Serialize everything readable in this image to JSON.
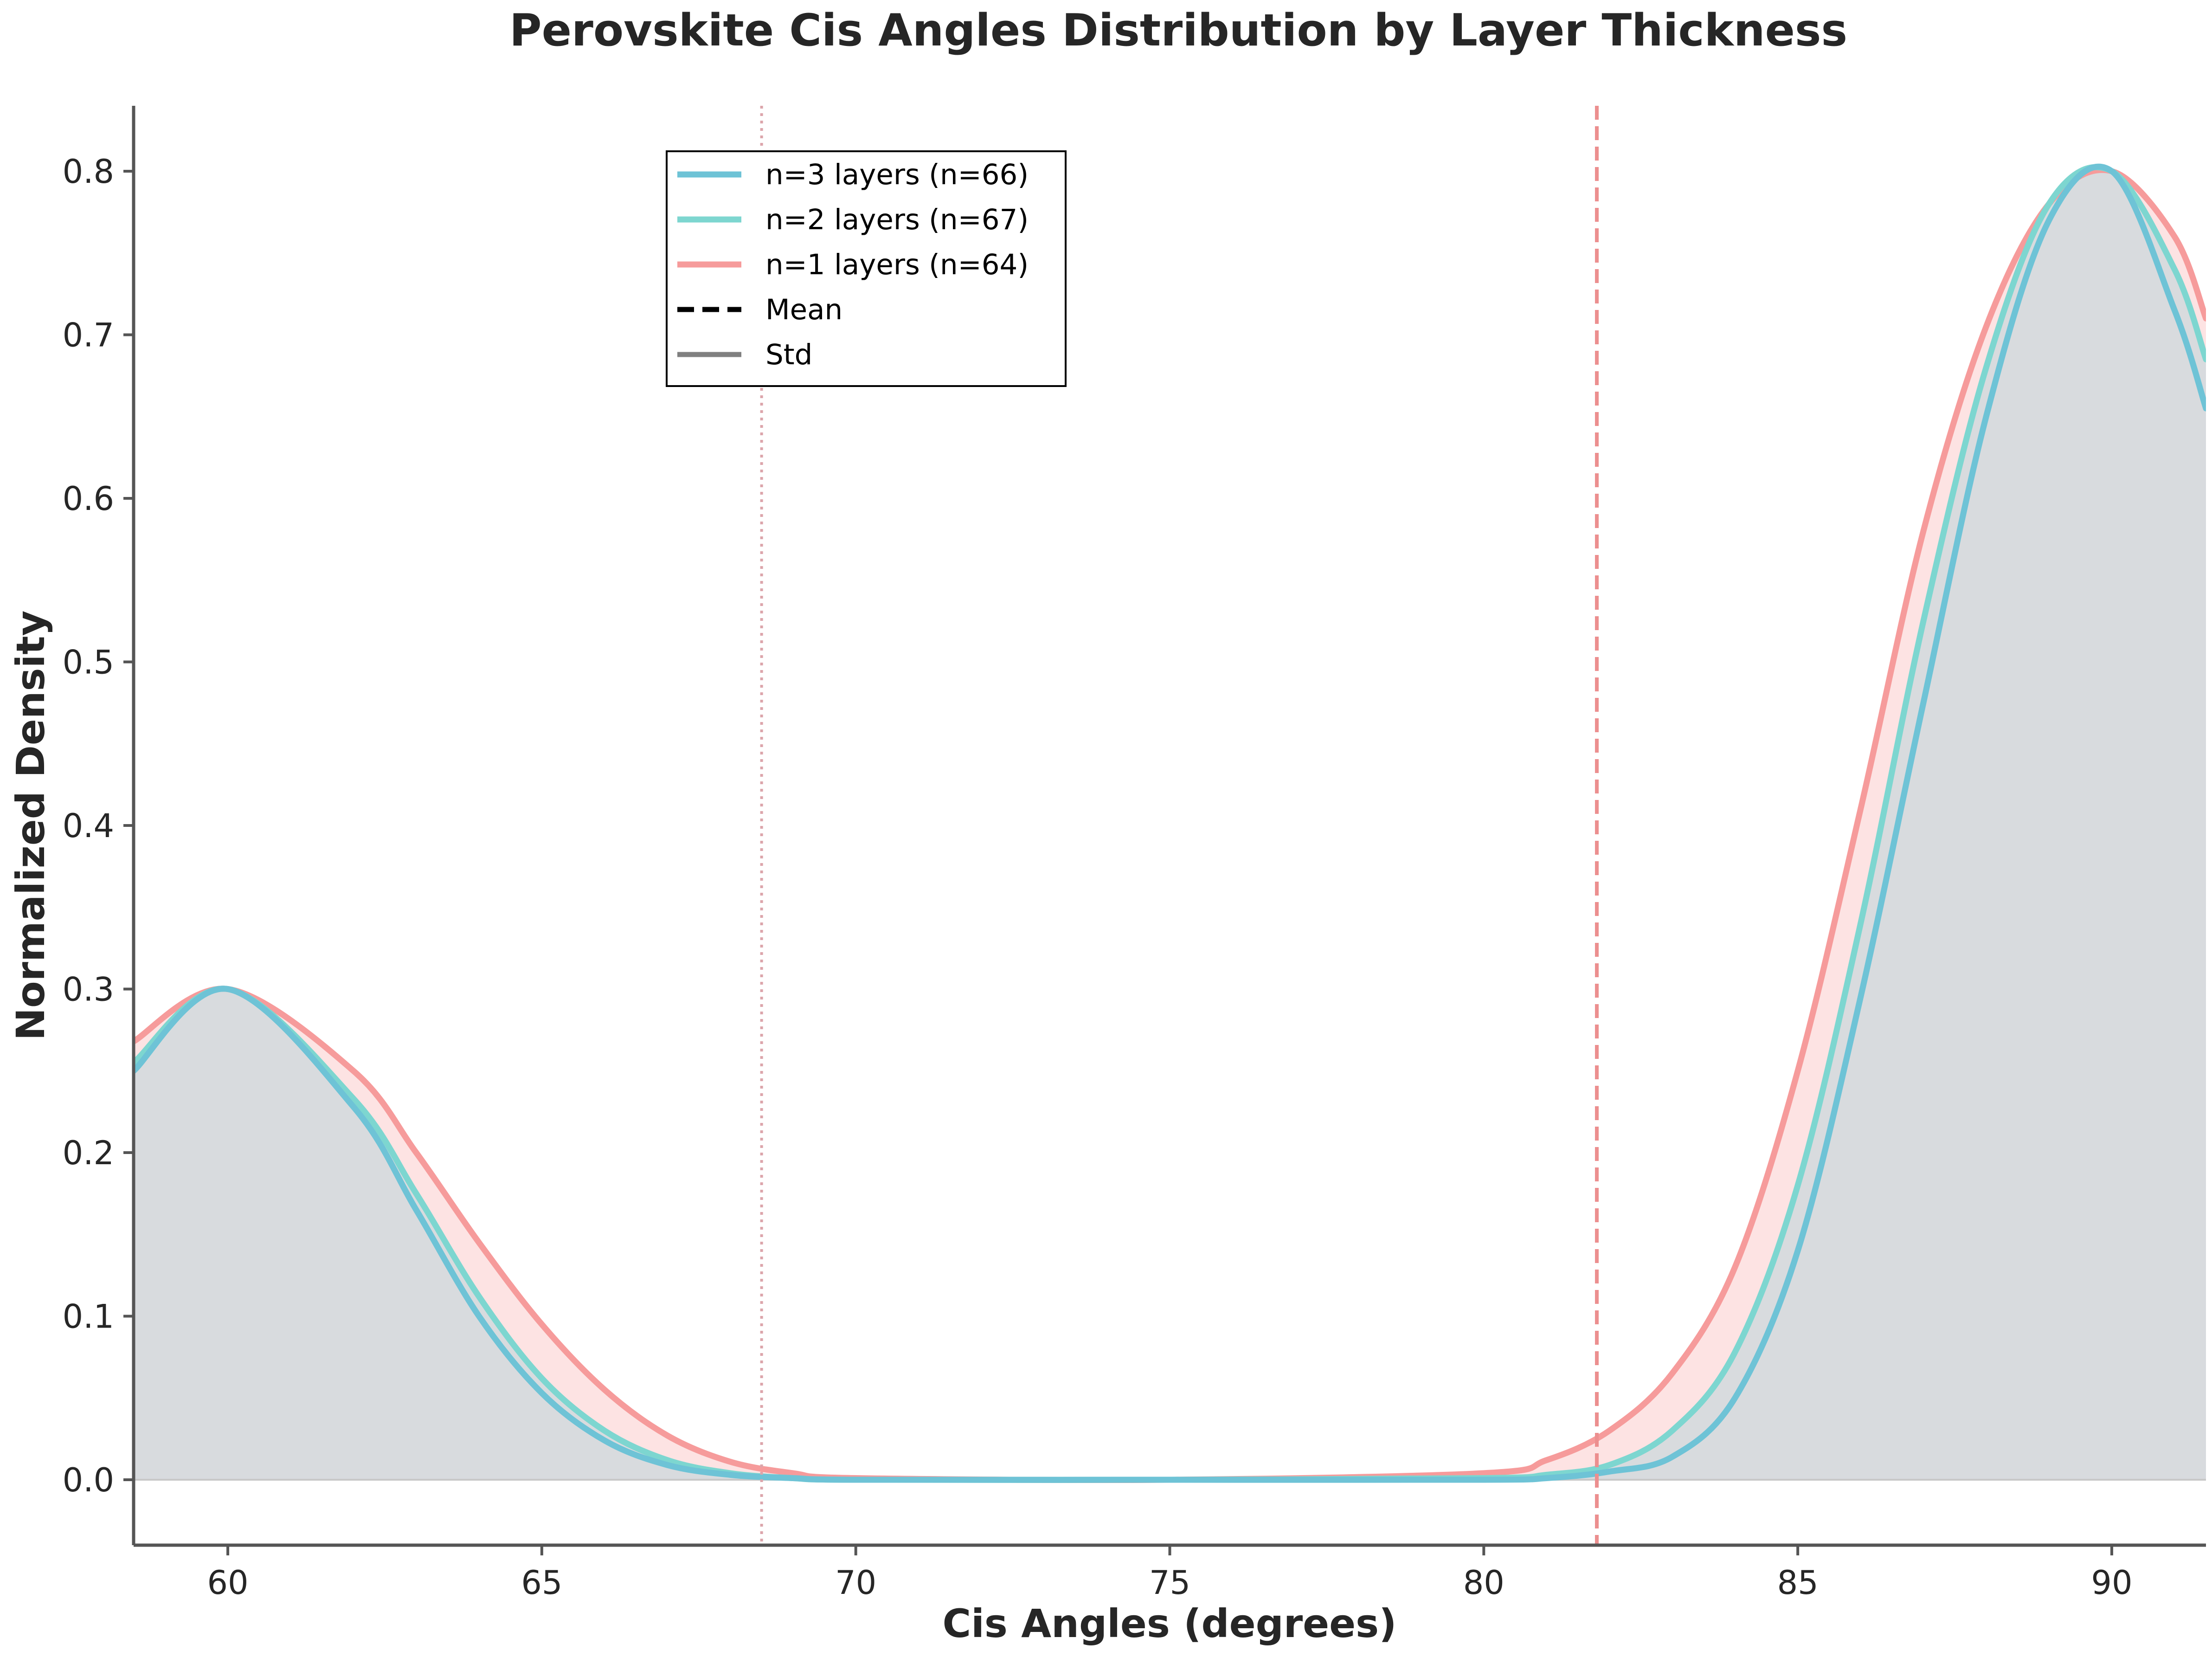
{
  "chart_data": {
    "type": "area",
    "title": "Perovskite Cis Angles Distribution by Layer Thickness",
    "xlabel": "Cis Angles (degrees)",
    "ylabel": "Normalized Density",
    "xlim": [
      58.5,
      91.5
    ],
    "ylim": [
      -0.04,
      0.84
    ],
    "xticks": [
      "60",
      "65",
      "70",
      "75",
      "80",
      "85",
      "90"
    ],
    "yticks": [
      "0.0",
      "0.1",
      "0.2",
      "0.3",
      "0.4",
      "0.5",
      "0.6",
      "0.7",
      "0.8"
    ],
    "grid": false,
    "legend_position": "upper-center-left",
    "legend": [
      {
        "label": "n=3 layers (n=66)",
        "style": "solid",
        "color": "#6ec3d6"
      },
      {
        "label": "n=2 layers (n=67)",
        "style": "solid",
        "color": "#7dd6d0"
      },
      {
        "label": "n=1 layers (n=64)",
        "style": "solid",
        "color": "#f69b9b"
      },
      {
        "label": "Mean",
        "style": "dashed",
        "color": "#000000"
      },
      {
        "label": "Std",
        "style": "solid",
        "color": "#808080"
      }
    ],
    "series": [
      {
        "name": "n=3 layers (n=66)",
        "color": "#6ec3d6",
        "x": [
          58.5,
          60,
          62,
          63,
          64,
          65,
          66,
          67,
          68,
          69,
          70,
          75,
          80,
          81,
          82,
          83,
          84,
          85,
          86,
          87,
          88,
          89,
          90,
          91,
          91.5
        ],
        "y": [
          0.25,
          0.3,
          0.228,
          0.165,
          0.1,
          0.053,
          0.024,
          0.009,
          0.003,
          0.001,
          0.0,
          0.0,
          0.0,
          0.001,
          0.005,
          0.014,
          0.05,
          0.14,
          0.295,
          0.475,
          0.65,
          0.77,
          0.8,
          0.715,
          0.655
        ]
      },
      {
        "name": "n=2 layers (n=67)",
        "color": "#7dd6d0",
        "x": [
          58.5,
          60,
          62,
          63,
          64,
          65,
          66,
          67,
          68,
          69,
          70,
          75,
          80,
          81,
          82,
          83,
          84,
          85,
          86,
          87,
          88,
          89,
          90,
          91,
          91.5
        ],
        "y": [
          0.255,
          0.3,
          0.233,
          0.175,
          0.112,
          0.062,
          0.03,
          0.012,
          0.004,
          0.001,
          0.0,
          0.0,
          0.001,
          0.003,
          0.009,
          0.03,
          0.078,
          0.18,
          0.34,
          0.525,
          0.68,
          0.78,
          0.8,
          0.74,
          0.685
        ]
      },
      {
        "name": "n=1 layers (n=64)",
        "color": "#f69b9b",
        "x": [
          58.5,
          60,
          62,
          63,
          64,
          65,
          66,
          67,
          68,
          69,
          70,
          75,
          80,
          81,
          82,
          83,
          84,
          85,
          86,
          87,
          88,
          89,
          90,
          91,
          91.5
        ],
        "y": [
          0.268,
          0.3,
          0.25,
          0.2,
          0.145,
          0.095,
          0.055,
          0.027,
          0.011,
          0.004,
          0.001,
          0.0,
          0.004,
          0.012,
          0.03,
          0.065,
          0.13,
          0.25,
          0.41,
          0.58,
          0.705,
          0.78,
          0.8,
          0.76,
          0.71
        ]
      }
    ],
    "vertical_lines": [
      {
        "x": 81.8,
        "style": "dashed",
        "color": "#ec8f8f"
      },
      {
        "x": 68.5,
        "style": "dotted",
        "color": "#dca5ab"
      }
    ]
  }
}
